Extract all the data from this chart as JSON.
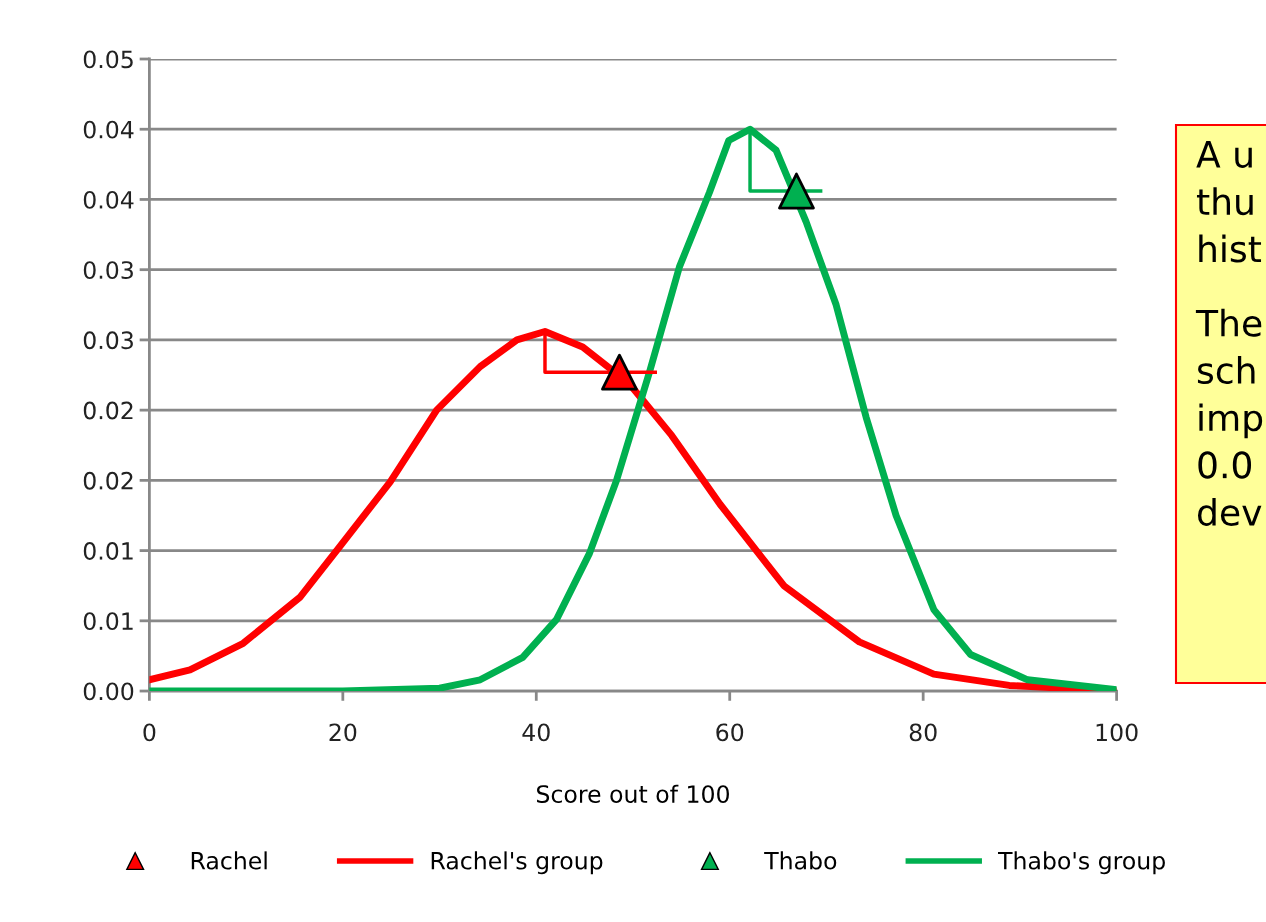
{
  "chart_data": {
    "type": "line",
    "xlabel": "Score out of 100",
    "xlim": [
      0,
      100
    ],
    "xticks": [
      0,
      20,
      40,
      60,
      80,
      100
    ],
    "ylim": [
      0,
      0.045
    ],
    "yticks": [
      {
        "value": 0,
        "label": "0.00"
      },
      {
        "value": 0.005,
        "label": "0.01"
      },
      {
        "value": 0.01,
        "label": "0.01"
      },
      {
        "value": 0.015,
        "label": "0.02"
      },
      {
        "value": 0.02,
        "label": "0.02"
      },
      {
        "value": 0.025,
        "label": "0.03"
      },
      {
        "value": 0.03,
        "label": "0.03"
      },
      {
        "value": 0.035,
        "label": "0.04"
      },
      {
        "value": 0.04,
        "label": "0.04"
      },
      {
        "value": 0.045,
        "label": "0.05"
      }
    ],
    "grid": "y",
    "legend": "bottom",
    "series": [
      {
        "name": "Rachel",
        "type": "scatter",
        "marker": "triangle",
        "color": "#ff0000",
        "x": [
          48.6
        ],
        "values": [
          0.0227
        ]
      },
      {
        "name": "Rachel's group",
        "color": "#ff0000",
        "x": [
          0,
          4.2,
          9.7,
          15.6,
          19.7,
          24.9,
          29.7,
          34.2,
          38,
          40.9,
          44.8,
          49.6,
          54,
          59,
          65.6,
          73.4,
          81.1,
          88.9,
          100
        ],
        "values": [
          0.0008,
          0.0015,
          0.0034,
          0.0067,
          0.0103,
          0.0149,
          0.02,
          0.0231,
          0.025,
          0.0256,
          0.0245,
          0.0219,
          0.0182,
          0.0133,
          0.0075,
          0.0035,
          0.0012,
          0.0004,
          0
        ]
      },
      {
        "name": "Thabo",
        "type": "scatter",
        "marker": "triangle",
        "color": "#00b050",
        "x": [
          66.9
        ],
        "values": [
          0.0356
        ]
      },
      {
        "name": "Thabo's group",
        "color": "#00b050",
        "x": [
          0,
          20,
          30,
          34.2,
          38.6,
          42.1,
          45.5,
          48.3,
          51.7,
          54.8,
          57.9,
          59.9,
          62.1,
          64.8,
          67.9,
          71,
          74.1,
          77.2,
          81.1,
          84.9,
          90.8,
          100
        ],
        "values": [
          0,
          0,
          0.0002,
          0.0008,
          0.0024,
          0.0051,
          0.0098,
          0.015,
          0.0227,
          0.0302,
          0.0355,
          0.0392,
          0.04,
          0.0385,
          0.0334,
          0.0275,
          0.0195,
          0.0125,
          0.0058,
          0.0026,
          0.0008,
          0.0001
        ]
      },
      {
        "color": "#ff0000",
        "x": [
          40.9,
          40.9,
          52.3
        ],
        "values": [
          0.0256,
          0.0227,
          0.0227
        ]
      },
      {
        "color": "#00b050",
        "x": [
          62.1,
          62.1,
          69.4
        ],
        "values": [
          0.04,
          0.0356,
          0.0356
        ]
      }
    ],
    "annotations": [
      "A u\nthu\nhist",
      "The\nsch\nimp\n0.0\ndev"
    ]
  }
}
